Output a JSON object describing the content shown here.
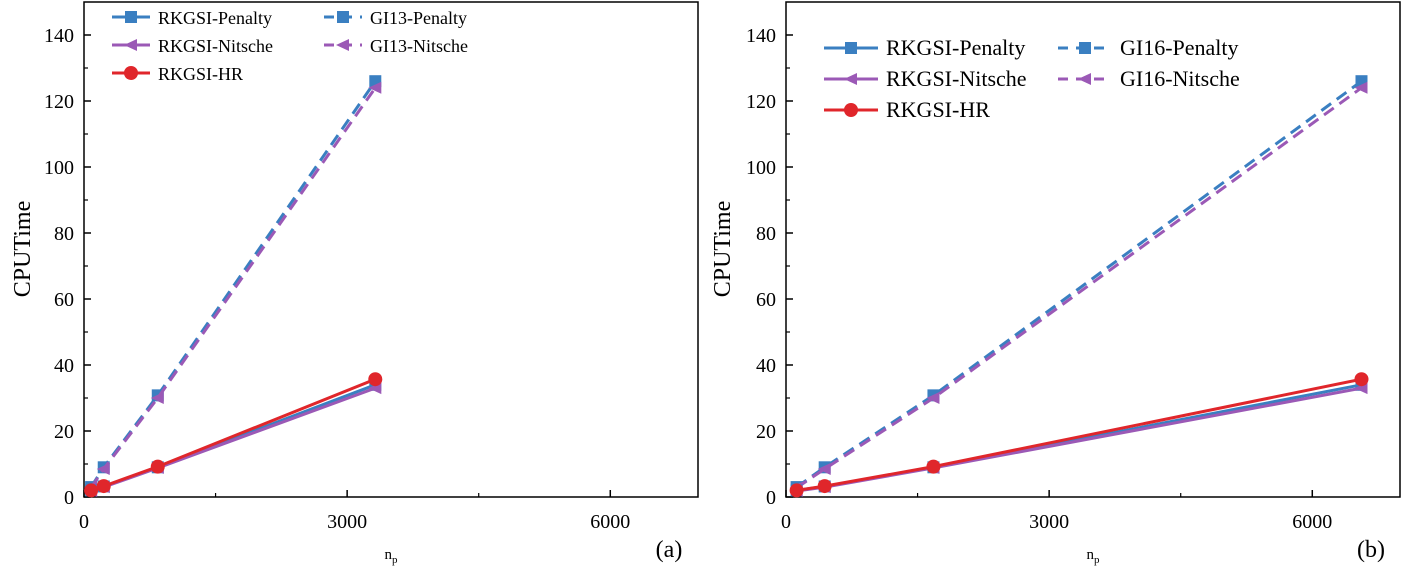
{
  "chart_data": [
    {
      "type": "line",
      "panel_label": "(a)",
      "xlabel": "n",
      "xlabel_sub": "p",
      "ylabel": "CPUTime",
      "xlim": [
        0,
        7000
      ],
      "ylim": [
        0,
        150
      ],
      "xticks": [
        0,
        3000,
        6000
      ],
      "yticks": [
        0,
        20,
        40,
        60,
        80,
        100,
        120,
        140
      ],
      "legend_position": "top-left",
      "series": [
        {
          "name": "RKGSI-Penalty",
          "color": "#3a7fc1",
          "style": "solid",
          "marker": "square",
          "x": [
            81,
            225,
            841,
            3321
          ],
          "y": [
            2.0,
            3.2,
            9.0,
            34.0
          ]
        },
        {
          "name": "RKGSI-Nitsche",
          "color": "#9b59b6",
          "style": "solid",
          "marker": "triangle-left",
          "x": [
            81,
            225,
            841,
            3321
          ],
          "y": [
            1.8,
            3.0,
            8.8,
            33.0
          ]
        },
        {
          "name": "RKGSI-HR",
          "color": "#e0262b",
          "style": "solid",
          "marker": "circle",
          "x": [
            81,
            225,
            841,
            3321
          ],
          "y": [
            2.0,
            3.3,
            9.2,
            35.7
          ]
        },
        {
          "name": "GI13-Penalty",
          "color": "#3a7fc1",
          "style": "dashed",
          "marker": "square",
          "x": [
            81,
            225,
            841,
            3321
          ],
          "y": [
            3.0,
            9.0,
            30.8,
            126.0
          ]
        },
        {
          "name": "GI13-Nitsche",
          "color": "#9b59b6",
          "style": "dashed",
          "marker": "triangle-left",
          "x": [
            81,
            225,
            841,
            3321
          ],
          "y": [
            2.8,
            8.5,
            30.0,
            124.0
          ]
        }
      ]
    },
    {
      "type": "line",
      "panel_label": "(b)",
      "xlabel": "n",
      "xlabel_sub": "p",
      "ylabel": "CPUTime",
      "xlim": [
        0,
        7000
      ],
      "ylim": [
        0,
        150
      ],
      "xticks": [
        0,
        3000,
        6000
      ],
      "yticks": [
        0,
        20,
        40,
        60,
        80,
        100,
        120,
        140
      ],
      "legend_position": "top-left",
      "series": [
        {
          "name": "RKGSI-Penalty",
          "color": "#3a7fc1",
          "style": "solid",
          "marker": "square",
          "x": [
            121,
            441,
            1681,
            6561
          ],
          "y": [
            2.0,
            3.2,
            9.0,
            34.0
          ]
        },
        {
          "name": "RKGSI-Nitsche",
          "color": "#9b59b6",
          "style": "solid",
          "marker": "triangle-left",
          "x": [
            121,
            441,
            1681,
            6561
          ],
          "y": [
            1.8,
            3.0,
            8.8,
            33.0
          ]
        },
        {
          "name": "RKGSI-HR",
          "color": "#e0262b",
          "style": "solid",
          "marker": "circle",
          "x": [
            121,
            441,
            1681,
            6561
          ],
          "y": [
            2.0,
            3.3,
            9.2,
            35.7
          ]
        },
        {
          "name": "GI16-Penalty",
          "color": "#3a7fc1",
          "style": "dashed",
          "marker": "square",
          "x": [
            121,
            441,
            1681,
            6561
          ],
          "y": [
            3.0,
            9.0,
            30.8,
            126.0
          ]
        },
        {
          "name": "GI16-Nitsche",
          "color": "#9b59b6",
          "style": "dashed",
          "marker": "triangle-left",
          "x": [
            121,
            441,
            1681,
            6561
          ],
          "y": [
            2.8,
            8.5,
            30.0,
            124.0
          ]
        }
      ]
    }
  ]
}
